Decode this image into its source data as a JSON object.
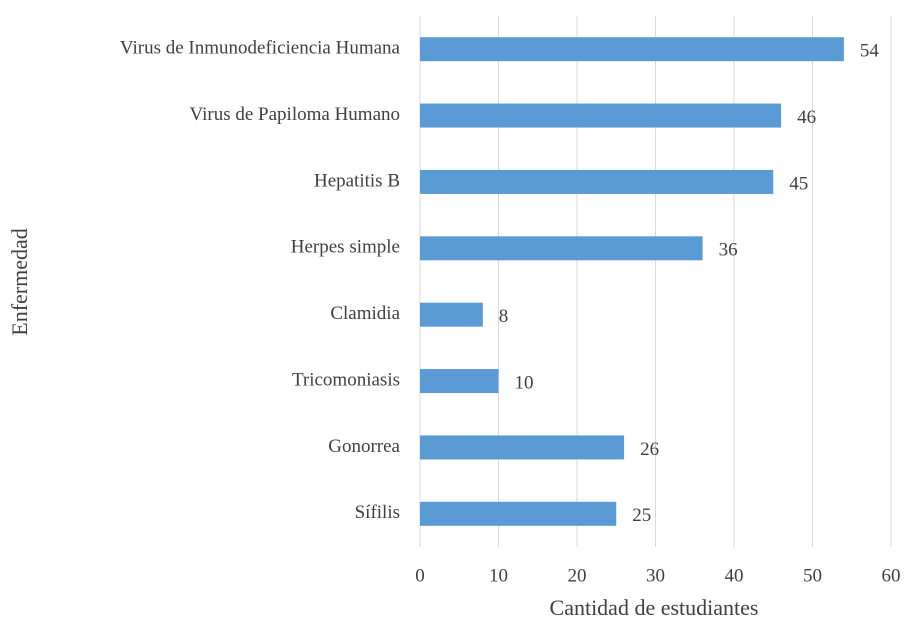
{
  "chart_data": {
    "type": "bar",
    "orientation": "horizontal",
    "x_label": "Cantidad de estudiantes",
    "y_label": "Enfermedad",
    "categories": [
      "Virus de Inmunodeficiencia Humana",
      "Virus de Papiloma Humano",
      "Hepatitis B",
      "Herpes simple",
      "Clamidia",
      "Tricomoniasis",
      "Gonorrea",
      "Sífilis"
    ],
    "values": [
      54,
      46,
      45,
      36,
      8,
      10,
      26,
      25
    ],
    "color": "#5b9bd5",
    "xlim": [
      0,
      60
    ],
    "xticks": [
      0,
      10,
      20,
      30,
      40,
      50,
      60
    ],
    "grid": true
  }
}
